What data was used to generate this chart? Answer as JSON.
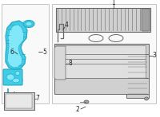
{
  "bg_color": "#ffffff",
  "left_box_bg": "#f9f9f9",
  "right_box_bg": "#f9f9f9",
  "box_edge": "#bbbbbb",
  "cyan": "#3ecce8",
  "cyan_dark": "#28aac0",
  "cyan_light": "#80e8f8",
  "gray_l": "#d0d0d0",
  "gray_m": "#a0a0a0",
  "gray_d": "#686868",
  "lbl": "#222222",
  "figsize": [
    2.0,
    1.47
  ],
  "dpi": 100
}
